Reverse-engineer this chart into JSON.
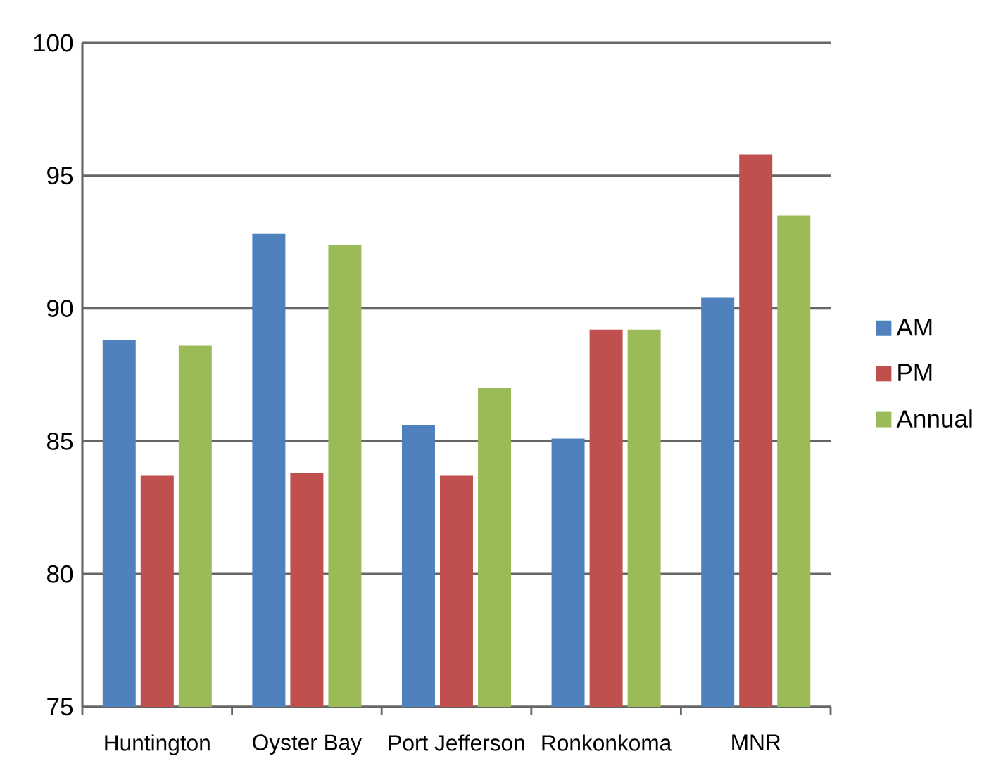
{
  "chart_data": {
    "type": "bar",
    "categories": [
      "Huntington",
      "Oyster Bay",
      "Port Jefferson",
      "Ronkonkoma",
      "MNR"
    ],
    "series": [
      {
        "name": "AM",
        "color": "#4f81bd",
        "values": [
          88.8,
          92.8,
          85.6,
          85.1,
          90.4
        ]
      },
      {
        "name": "PM",
        "color": "#c0504d",
        "values": [
          83.7,
          83.8,
          83.7,
          89.2,
          95.8
        ]
      },
      {
        "name": "Annual",
        "color": "#9bbb59",
        "values": [
          88.6,
          92.4,
          87.0,
          89.2,
          93.5
        ]
      }
    ],
    "ylim": [
      75,
      100
    ],
    "yticks": [
      75,
      80,
      85,
      90,
      95,
      100
    ],
    "grid": "y",
    "legend": "right"
  }
}
